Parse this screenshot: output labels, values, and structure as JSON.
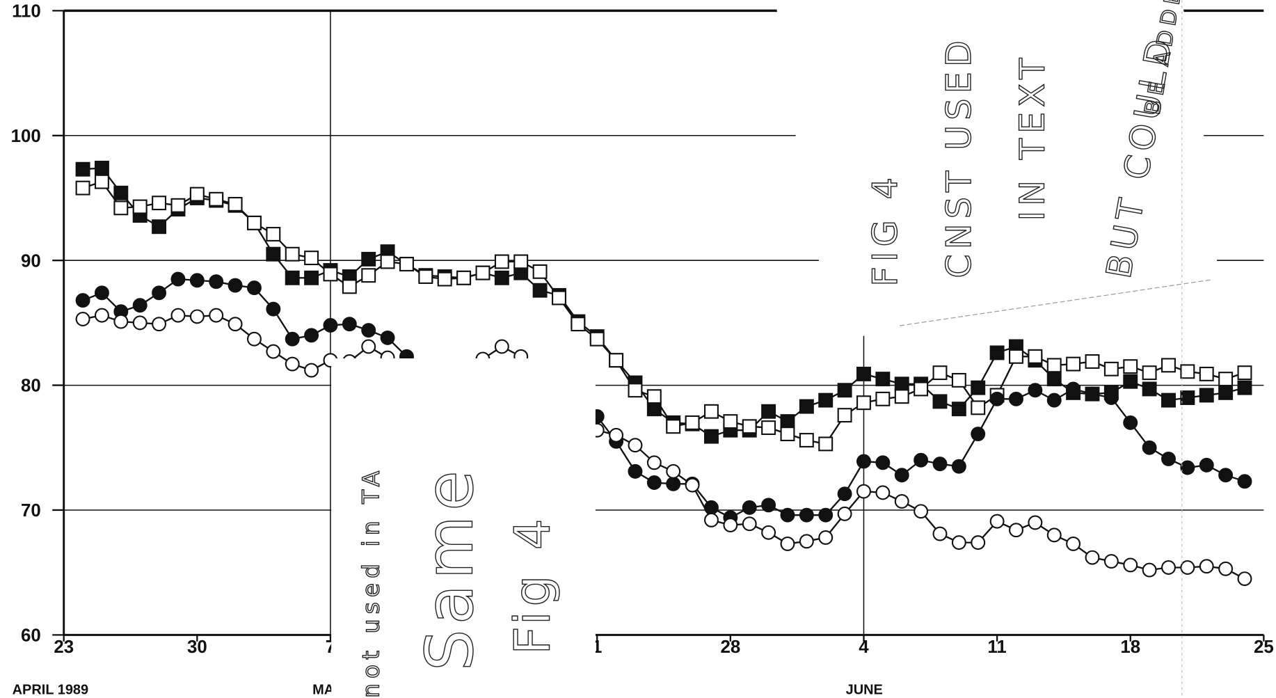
{
  "chart_data": {
    "type": "line",
    "x": [
      1,
      2,
      3,
      4,
      5,
      6,
      7,
      8,
      9,
      10,
      11,
      12,
      13,
      14,
      15,
      16,
      17,
      18,
      19,
      20,
      21,
      22,
      23,
      24,
      25,
      26,
      27,
      28,
      29,
      30,
      31,
      32,
      33,
      34,
      35,
      36,
      37,
      38,
      39,
      40,
      41,
      42,
      43,
      44,
      45,
      46,
      47,
      48,
      49,
      50,
      51,
      52,
      53,
      54,
      55,
      56,
      57,
      58,
      59,
      60,
      61,
      62
    ],
    "xlim": [
      0,
      63
    ],
    "xticks": [
      {
        "value": 0,
        "label": "23"
      },
      {
        "value": 7,
        "label": "30"
      },
      {
        "value": 14,
        "label": "7"
      },
      {
        "value": 28,
        "label": "1"
      },
      {
        "value": 35,
        "label": "28"
      },
      {
        "value": 42,
        "label": "4"
      },
      {
        "value": 49,
        "label": "11"
      },
      {
        "value": 56,
        "label": "18"
      },
      {
        "value": 63,
        "label": "25"
      }
    ],
    "month_labels": [
      {
        "value": 0,
        "label": "APRIL 1989"
      },
      {
        "value": 14,
        "label": "MA"
      },
      {
        "value": 42,
        "label": "JUNE"
      }
    ],
    "ylim": [
      60,
      110
    ],
    "yticks": [
      60,
      70,
      80,
      90,
      100,
      110
    ],
    "grid": true,
    "series": [
      {
        "color": "#111111",
        "marker": "square",
        "filled": true,
        "values": [
          97.3,
          97.4,
          95.4,
          93.6,
          92.7,
          94.1,
          95.0,
          94.8,
          94.4,
          93.0,
          90.5,
          88.6,
          88.6,
          89.2,
          88.7,
          90.1,
          90.7,
          89.7,
          88.8,
          88.7,
          88.6,
          89.0,
          88.6,
          89.0,
          87.6,
          87.2,
          85.1,
          83.9,
          82.0,
          80.2,
          78.1,
          77.0,
          76.9,
          75.9,
          76.4,
          76.4,
          77.9,
          77.1,
          78.3,
          78.8,
          79.6,
          80.9,
          80.5,
          80.1,
          80.1,
          78.7,
          78.1,
          79.8,
          82.6,
          83.1,
          82.0,
          80.5,
          79.4,
          79.3,
          79.4,
          80.3,
          79.7,
          78.8,
          79.0,
          79.2,
          79.4,
          79.8
        ]
      },
      {
        "color": "#111111",
        "marker": "square",
        "filled": false,
        "values": [
          95.8,
          96.3,
          94.2,
          94.3,
          94.6,
          94.4,
          95.3,
          94.9,
          94.5,
          93.0,
          92.1,
          90.5,
          90.2,
          88.9,
          87.9,
          88.8,
          89.9,
          89.7,
          88.7,
          88.5,
          88.6,
          89.0,
          89.9,
          89.9,
          89.1,
          87.0,
          84.9,
          83.7,
          82.0,
          79.6,
          79.1,
          76.7,
          77.0,
          77.9,
          77.1,
          76.7,
          76.6,
          76.1,
          75.6,
          75.3,
          77.6,
          78.6,
          78.9,
          79.1,
          79.7,
          81.0,
          80.4,
          78.2,
          79.2,
          82.3,
          82.3,
          81.6,
          81.7,
          81.9,
          81.3,
          81.5,
          81.0,
          81.6,
          81.1,
          80.9,
          80.5,
          81.0
        ]
      },
      {
        "color": "#111111",
        "marker": "circle",
        "filled": true,
        "values": [
          86.8,
          87.4,
          85.9,
          86.4,
          87.4,
          88.5,
          88.4,
          88.3,
          88.0,
          87.8,
          86.1,
          83.7,
          84.0,
          84.8,
          84.9,
          84.4,
          83.8,
          82.3,
          null,
          null,
          null,
          null,
          null,
          null,
          null,
          null,
          null,
          77.5,
          75.5,
          73.1,
          72.2,
          72.1,
          72.1,
          70.2,
          69.4,
          70.2,
          70.4,
          69.6,
          69.6,
          69.6,
          71.3,
          73.9,
          73.8,
          72.8,
          74.0,
          73.7,
          73.5,
          76.1,
          78.9,
          78.9,
          79.6,
          78.8,
          79.7,
          79.3,
          79.0,
          77.0,
          75.0,
          74.1,
          73.4,
          73.6,
          72.8,
          72.3
        ]
      },
      {
        "color": "#111111",
        "marker": "circle",
        "filled": false,
        "values": [
          85.3,
          85.6,
          85.1,
          85.0,
          84.9,
          85.6,
          85.5,
          85.6,
          84.9,
          83.7,
          82.7,
          81.7,
          81.2,
          82.0,
          81.9,
          83.1,
          82.2,
          null,
          null,
          81.5,
          null,
          82.1,
          83.1,
          82.3,
          null,
          null,
          null,
          76.4,
          76.0,
          75.2,
          73.8,
          73.1,
          72.0,
          69.2,
          68.8,
          68.9,
          68.2,
          67.3,
          67.5,
          67.8,
          69.7,
          71.5,
          71.4,
          70.7,
          69.9,
          68.1,
          67.4,
          67.4,
          69.1,
          68.4,
          69.0,
          68.0,
          67.3,
          66.2,
          65.9,
          65.6,
          65.2,
          65.4,
          65.4,
          65.5,
          65.3,
          64.5
        ]
      }
    ],
    "annotations": [
      "FIG 4",
      "CNST USED",
      "IN TEXT",
      "BUT COULD",
      "BE ADDED",
      "not used in TA",
      "Same",
      "Fig 4"
    ]
  }
}
